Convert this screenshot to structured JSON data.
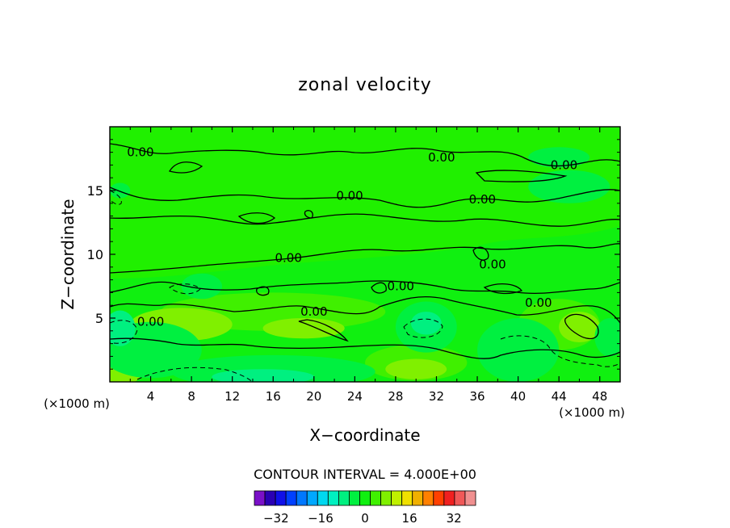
{
  "chart_data": {
    "type": "heatmap",
    "title": "zonal velocity",
    "xlabel": "X−coordinate",
    "ylabel": "Z−coordinate",
    "x_unit": "(×1000 m)",
    "y_unit": "(×1000 m)",
    "xlim": [
      0,
      50
    ],
    "ylim": [
      0,
      20
    ],
    "x_ticks": [
      4,
      8,
      12,
      16,
      20,
      24,
      28,
      32,
      36,
      40,
      44,
      48
    ],
    "y_ticks": [
      5,
      10,
      15
    ],
    "contour_interval_text": "CONTOUR INTERVAL = 4.000E+00",
    "contour_labels": [
      {
        "text": "0.00",
        "x": 3,
        "z": 18.0
      },
      {
        "text": "0.00",
        "x": 32.5,
        "z": 17.6
      },
      {
        "text": "0.00",
        "x": 44.5,
        "z": 17.0
      },
      {
        "text": "0.00",
        "x": 23.5,
        "z": 14.6
      },
      {
        "text": "0.00",
        "x": 36.5,
        "z": 14.3
      },
      {
        "text": "0.00",
        "x": 17.5,
        "z": 9.7
      },
      {
        "text": "0.00",
        "x": 37.5,
        "z": 9.2
      },
      {
        "text": "0.00",
        "x": 28.5,
        "z": 7.5
      },
      {
        "text": "0.00",
        "x": 42.0,
        "z": 6.2
      },
      {
        "text": "0.00",
        "x": 20.0,
        "z": 5.5
      },
      {
        "text": "0.00",
        "x": 4.0,
        "z": 4.7
      }
    ],
    "colorbar": {
      "levels": [
        -36,
        -32,
        -28,
        -24,
        -20,
        -16,
        -12,
        -8,
        -4,
        0,
        4,
        8,
        12,
        16,
        20,
        24,
        28,
        32,
        36
      ],
      "tick_labels": [
        "−32",
        "−16",
        "0",
        "16",
        "32"
      ],
      "tick_values": [
        -32,
        -16,
        0,
        16,
        32
      ],
      "colors": [
        "#7a10c8",
        "#2a00b4",
        "#1010e8",
        "#0040ff",
        "#0078ff",
        "#00a8ff",
        "#00d8f0",
        "#00f0c0",
        "#00f080",
        "#00f040",
        "#10f010",
        "#40f000",
        "#80f000",
        "#c0f000",
        "#f0e000",
        "#f0b000",
        "#ff8000",
        "#ff4000",
        "#f02020",
        "#f05858",
        "#f09090"
      ]
    },
    "regions": [
      {
        "level": 4,
        "x": 16,
        "z": 5.5,
        "rx": 11,
        "rz": 1.5
      },
      {
        "level": 8,
        "x": 7,
        "z": 4.5,
        "rx": 5,
        "rz": 1.3
      },
      {
        "level": 8,
        "x": 19,
        "z": 4.2,
        "rx": 4,
        "rz": 0.8
      },
      {
        "level": 4,
        "x": 30,
        "z": 1.5,
        "rx": 5,
        "rz": 1.4
      },
      {
        "level": 8,
        "x": 30,
        "z": 1.0,
        "rx": 3,
        "rz": 0.8
      },
      {
        "level": 4,
        "x": 44,
        "z": 4.5,
        "rx": 4,
        "rz": 2.0
      },
      {
        "level": 8,
        "x": 46,
        "z": 4.3,
        "rx": 2,
        "rz": 1.2
      },
      {
        "level": 8,
        "x": 1,
        "z": 0.5,
        "rx": 2,
        "rz": 0.7
      },
      {
        "level": -4,
        "x": 4,
        "z": 2.5,
        "rx": 5,
        "rz": 2.2
      },
      {
        "level": -8,
        "x": 1,
        "z": 4.2,
        "rx": 1.5,
        "rz": 1.4
      },
      {
        "level": -4,
        "x": 16,
        "z": 0.8,
        "rx": 10,
        "rz": 1.3
      },
      {
        "level": -8,
        "x": 15,
        "z": 0.4,
        "rx": 5,
        "rz": 0.6
      },
      {
        "level": -4,
        "x": 31,
        "z": 4.3,
        "rx": 3,
        "rz": 2.0
      },
      {
        "level": -8,
        "x": 31,
        "z": 4.6,
        "rx": 1.5,
        "rz": 0.9
      },
      {
        "level": -4,
        "x": 40,
        "z": 2.5,
        "rx": 4,
        "rz": 2.5
      },
      {
        "level": -4,
        "x": 49,
        "z": 3.5,
        "rx": 1.5,
        "rz": 1.5
      },
      {
        "level": -4,
        "x": 9,
        "z": 7.5,
        "rx": 2,
        "rz": 1.0
      },
      {
        "level": -4,
        "x": 1,
        "z": 15.0,
        "rx": 1,
        "rz": 0.6
      },
      {
        "level": -4,
        "x": 45,
        "z": 15.3,
        "rx": 4,
        "rz": 1.3
      },
      {
        "level": -4,
        "x": 44,
        "z": 17.6,
        "rx": 3,
        "rz": 0.8
      }
    ]
  }
}
